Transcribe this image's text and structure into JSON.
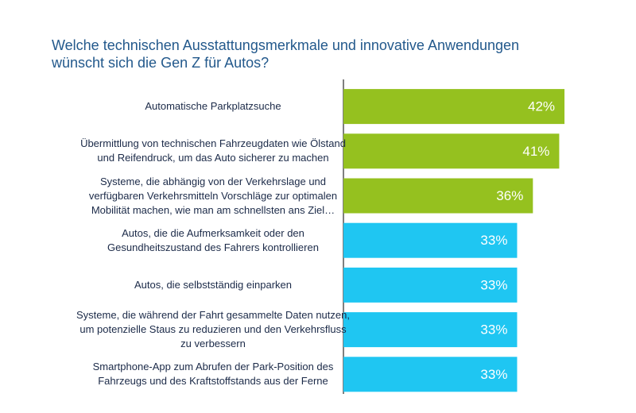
{
  "chart_data": {
    "type": "bar",
    "orientation": "horizontal",
    "title": "Welche technischen Ausstattungsmerkmale und innovative Anwendungen wünscht sich die Gen Z für Autos?",
    "categories": [
      "Automatische Parkplatzsuche",
      "Übermittlung von technischen Fahrzeugdaten wie Ölstand und Reifendruck, um das Auto sicherer zu machen",
      "Systeme, die abhängig von der Verkehrslage und verfügbaren Verkehrsmitteln Vorschläge zur optimalen Mobilität machen, wie man am schnellsten ans Ziel…",
      "Autos, die die Aufmerksamkeit oder den Gesundheitszustand des Fahrers kontrollieren",
      "Autos, die selbstständig einparken",
      "Systeme, die während der Fahrt gesammelte Daten nutzen, um potenzielle Staus zu reduzieren und den Verkehrsfluss zu verbessern",
      "Smartphone-App zum Abrufen der Park-Position des Fahrzeugs und des Kraftstoffstands aus der Ferne"
    ],
    "values": [
      42,
      41,
      36,
      33,
      33,
      33,
      33
    ],
    "value_labels": [
      "42%",
      "41%",
      "36%",
      "33%",
      "33%",
      "33%",
      "33%"
    ],
    "colors": [
      "#95c11f",
      "#95c11f",
      "#95c11f",
      "#1fc6f2",
      "#1fc6f2",
      "#1fc6f2",
      "#1fc6f2"
    ]
  }
}
